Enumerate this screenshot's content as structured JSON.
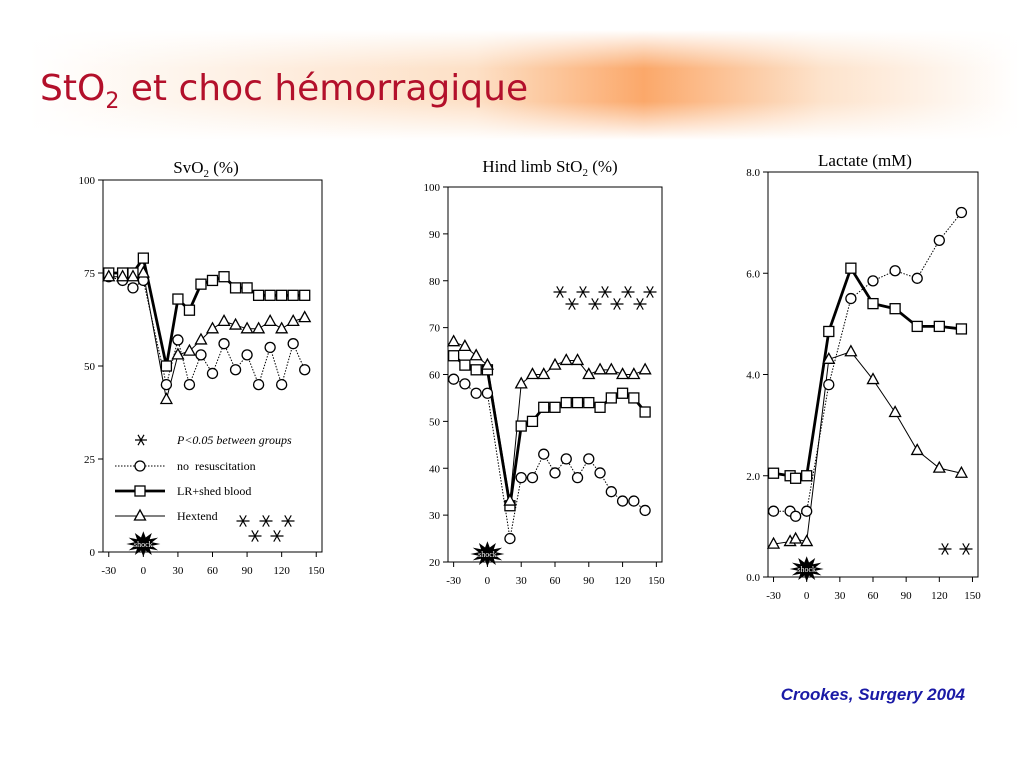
{
  "slide": {
    "title": [
      "StO",
      "2",
      " et choc hémorragique"
    ],
    "citation": "Crookes, Surgery 2004"
  },
  "chart_data": [
    {
      "type": "line",
      "title": [
        "SvO",
        "2",
        " (%)"
      ],
      "xlim": [
        -35,
        155
      ],
      "xticks": [
        -30,
        0,
        30,
        60,
        90,
        120,
        150
      ],
      "ylim": [
        0,
        100
      ],
      "yticks": [
        0,
        25,
        50,
        75,
        100
      ],
      "annotation": "shock",
      "legend": true,
      "legend_note": "P<0.05 between groups",
      "x": [
        -30,
        -18,
        -9,
        0,
        20,
        30,
        40,
        50,
        60,
        70,
        80,
        90,
        100,
        110,
        120,
        130,
        140
      ],
      "series": [
        {
          "name": "no  resuscitation",
          "color": "#000000",
          "marker": "circle",
          "style": "dotted",
          "values": [
            74,
            73,
            71,
            73,
            45,
            57,
            45,
            53,
            48,
            56,
            49,
            53,
            45,
            55,
            45,
            56,
            49
          ]
        },
        {
          "name": "LR+shed blood",
          "color": "#000000",
          "marker": "square",
          "style": "thick",
          "values": [
            75,
            75,
            75,
            79,
            50,
            68,
            65,
            72,
            73,
            74,
            71,
            71,
            69,
            69,
            69,
            69,
            69
          ]
        },
        {
          "name": "Hextend",
          "color": "#000000",
          "marker": "triangle",
          "style": "thin",
          "values": [
            74,
            74,
            74,
            75,
            41,
            53,
            54,
            57,
            60,
            62,
            61,
            60,
            60,
            62,
            60,
            62,
            63
          ]
        }
      ]
    },
    {
      "type": "line",
      "title": [
        "Hind limb StO",
        "2",
        " (%)"
      ],
      "xlim": [
        -35,
        155
      ],
      "xticks": [
        -30,
        0,
        30,
        60,
        90,
        120,
        150
      ],
      "ylim": [
        20,
        100
      ],
      "yticks": [
        20,
        30,
        40,
        50,
        60,
        70,
        80,
        90,
        100
      ],
      "annotation": "shock",
      "legend": false,
      "x": [
        -30,
        -20,
        -10,
        0,
        20,
        30,
        40,
        50,
        60,
        70,
        80,
        90,
        100,
        110,
        120,
        130,
        140
      ],
      "series": [
        {
          "name": "no  resuscitation",
          "color": "#000000",
          "marker": "circle",
          "style": "dotted",
          "values": [
            59,
            58,
            56,
            56,
            25,
            38,
            38,
            43,
            39,
            42,
            38,
            42,
            39,
            35,
            33,
            33,
            31
          ]
        },
        {
          "name": "LR+shed blood",
          "color": "#000000",
          "marker": "square",
          "style": "thick",
          "values": [
            64,
            62,
            61,
            61,
            32,
            49,
            50,
            53,
            53,
            54,
            54,
            54,
            53,
            55,
            56,
            55,
            52
          ]
        },
        {
          "name": "Hextend",
          "color": "#000000",
          "marker": "triangle",
          "style": "thin",
          "values": [
            67,
            66,
            64,
            62,
            33,
            58,
            60,
            60,
            62,
            63,
            63,
            60,
            61,
            61,
            60,
            60,
            61
          ]
        }
      ]
    },
    {
      "type": "line",
      "title": [
        "Lactate (mM)"
      ],
      "xlim": [
        -35,
        155
      ],
      "xticks": [
        -30,
        0,
        30,
        60,
        90,
        120,
        150
      ],
      "ylim": [
        0,
        8
      ],
      "yticks": [
        {
          "value": 0,
          "label": "0.0"
        },
        {
          "value": 2,
          "label": "2.0"
        },
        {
          "value": 4,
          "label": "4.0"
        },
        {
          "value": 6,
          "label": "6.0"
        },
        {
          "value": 8,
          "label": "8.0"
        }
      ],
      "annotation": "shock",
      "legend": false,
      "x": [
        -30,
        -15,
        -10,
        0,
        20,
        40,
        60,
        80,
        100,
        120,
        140
      ],
      "series": [
        {
          "name": "no  resuscitation",
          "color": "#000000",
          "marker": "circle",
          "style": "dotted",
          "values": [
            1.3,
            1.3,
            1.2,
            1.3,
            3.8,
            5.5,
            5.85,
            6.05,
            5.9,
            6.65,
            7.2
          ]
        },
        {
          "name": "LR+shed blood",
          "color": "#000000",
          "marker": "square",
          "style": "thick",
          "values": [
            2.05,
            2.0,
            1.95,
            2.0,
            4.85,
            6.1,
            5.4,
            5.3,
            4.95,
            4.95,
            4.9
          ]
        },
        {
          "name": "Hextend",
          "color": "#000000",
          "marker": "triangle",
          "style": "thin",
          "values": [
            0.65,
            0.7,
            0.75,
            0.7,
            4.3,
            4.45,
            3.9,
            3.25,
            2.5,
            2.15,
            2.05
          ]
        }
      ]
    }
  ]
}
